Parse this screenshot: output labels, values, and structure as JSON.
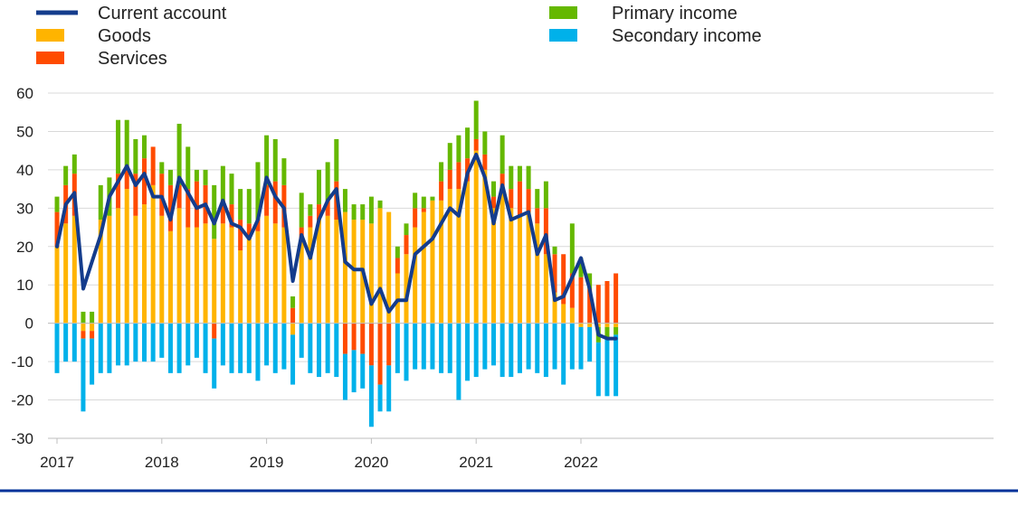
{
  "chart_data": {
    "type": "bar",
    "stacked": true,
    "title": "",
    "xlabel": "",
    "ylabel": "",
    "ylim": [
      -30,
      60
    ],
    "yticks": [
      60,
      50,
      40,
      30,
      20,
      10,
      0,
      -10,
      -20,
      -30
    ],
    "xtick_labels": [
      "2017",
      "2018",
      "2019",
      "2020",
      "2021",
      "2022"
    ],
    "grid": "horizontal",
    "legend_position": "top",
    "periods": 65,
    "series": [
      {
        "name": "Current account",
        "kind": "line",
        "color": "#143c8c",
        "values": [
          20,
          31,
          34,
          9,
          16,
          23,
          33,
          37,
          41,
          36,
          39,
          33,
          33,
          27,
          38,
          34,
          30,
          31,
          26,
          32,
          26,
          25,
          22,
          27,
          38,
          33,
          30,
          11,
          23,
          17,
          27,
          32,
          35,
          16,
          14,
          14,
          5,
          9,
          3,
          6,
          6,
          18,
          20,
          22,
          26,
          30,
          28,
          39,
          44,
          38,
          26,
          36,
          27,
          28,
          29,
          18,
          23,
          6,
          7,
          12,
          17,
          9,
          -3,
          -4,
          -4
        ]
      },
      {
        "name": "Goods",
        "kind": "bar",
        "color": "#ffb400",
        "values": [
          20,
          26,
          28,
          -2,
          -2,
          27,
          28,
          30,
          35,
          28,
          31,
          36,
          28,
          24,
          30,
          25,
          25,
          26,
          22,
          26,
          25,
          19,
          22,
          24,
          28,
          26,
          25,
          -3,
          22,
          25,
          27,
          28,
          27,
          29,
          27,
          27,
          26,
          30,
          29,
          13,
          18,
          25,
          29,
          32,
          32,
          35,
          35,
          37,
          45,
          40,
          30,
          34,
          30,
          28,
          29,
          26,
          18,
          8,
          5,
          4,
          -1,
          -1,
          -1,
          -1,
          -1
        ]
      },
      {
        "name": "Services",
        "kind": "bar",
        "color": "#ff4b00",
        "values": [
          9,
          10,
          11,
          -2,
          -2,
          0,
          0,
          9,
          6,
          11,
          12,
          10,
          11,
          12,
          6,
          10,
          12,
          10,
          -4,
          6,
          6,
          8,
          4,
          3,
          8,
          11,
          11,
          4,
          3,
          3,
          4,
          4,
          10,
          -8,
          -7,
          -8,
          -11,
          -16,
          -11,
          4,
          5,
          5,
          1,
          0,
          5,
          5,
          7,
          6,
          3,
          4,
          3,
          5,
          5,
          9,
          6,
          4,
          12,
          10,
          13,
          9,
          12,
          9,
          10,
          11,
          13
        ]
      },
      {
        "name": "Primary income",
        "kind": "bar",
        "color": "#65b800",
        "values": [
          4,
          5,
          5,
          3,
          3,
          9,
          10,
          14,
          12,
          9,
          6,
          0,
          3,
          4,
          16,
          11,
          3,
          4,
          14,
          9,
          8,
          8,
          9,
          15,
          13,
          11,
          7,
          3,
          9,
          3,
          9,
          10,
          11,
          6,
          4,
          4,
          7,
          2,
          0,
          3,
          3,
          4,
          3,
          1,
          5,
          7,
          7,
          8,
          10,
          6,
          4,
          10,
          6,
          4,
          6,
          5,
          7,
          2,
          0,
          13,
          5,
          4,
          -4,
          -3,
          -2
        ]
      },
      {
        "name": "Secondary income",
        "kind": "bar",
        "color": "#00b1ea",
        "values": [
          -13,
          -10,
          -10,
          -19,
          -12,
          -13,
          -13,
          -11,
          -11,
          -10,
          -10,
          -10,
          -9,
          -13,
          -13,
          -11,
          -9,
          -13,
          -13,
          -11,
          -13,
          -13,
          -13,
          -15,
          -11,
          -13,
          -12,
          -13,
          -9,
          -13,
          -14,
          -13,
          -14,
          -12,
          -11,
          -9,
          -16,
          -7,
          -12,
          -13,
          -15,
          -12,
          -12,
          -12,
          -13,
          -13,
          -20,
          -15,
          -14,
          -12,
          -11,
          -14,
          -14,
          -13,
          -12,
          -13,
          -14,
          -12,
          -16,
          -12,
          -11,
          -9,
          -14,
          -15,
          -16
        ]
      }
    ]
  }
}
